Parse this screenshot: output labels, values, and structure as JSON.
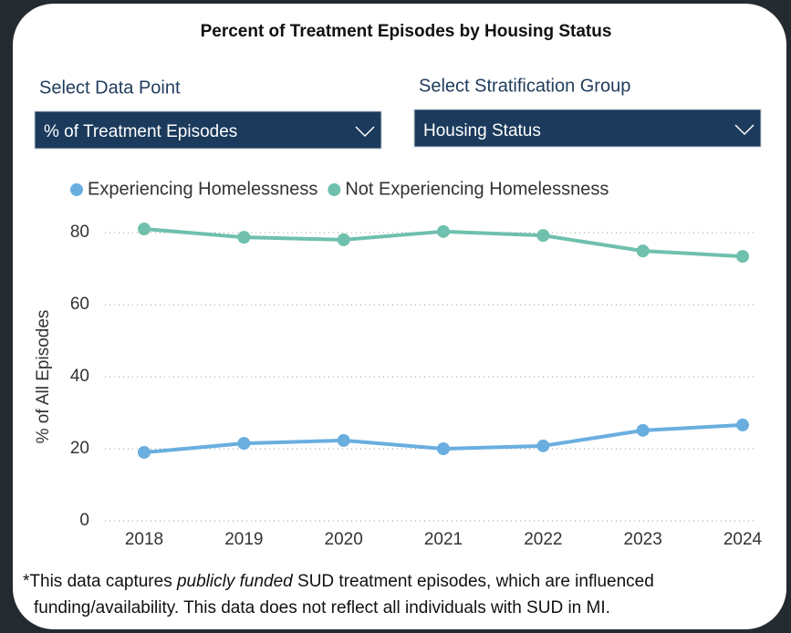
{
  "title": "Percent of Treatment Episodes by Housing Status",
  "filters": [
    {
      "label": "Select Data Point",
      "selected": "% of Treatment Episodes"
    },
    {
      "label": "Select Stratification Group",
      "selected": "Housing Status"
    }
  ],
  "chart_data": {
    "type": "line",
    "ylabel": "% of All Episodes",
    "categories": [
      "2018",
      "2019",
      "2020",
      "2021",
      "2022",
      "2023",
      "2024"
    ],
    "series": [
      {
        "name": "Experiencing Homelessness",
        "color": "#6aaee0",
        "values": [
          19.0,
          21.5,
          22.3,
          20.0,
          20.8,
          25.1,
          26.6
        ]
      },
      {
        "name": "Not Experiencing Homelessness",
        "color": "#6fc0ac",
        "values": [
          81.0,
          78.7,
          78.0,
          80.3,
          79.2,
          74.9,
          73.4
        ]
      }
    ],
    "ylim": [
      0,
      85
    ],
    "yticks": [
      0,
      20,
      40,
      60,
      80
    ],
    "grid": true
  },
  "footnote": {
    "line1": [
      "*This data captures ",
      "publicly funded",
      " SUD treatment episodes, which are influenced"
    ],
    "line2": "funding/availability. This data does not reflect all individuals with SUD in MI."
  }
}
